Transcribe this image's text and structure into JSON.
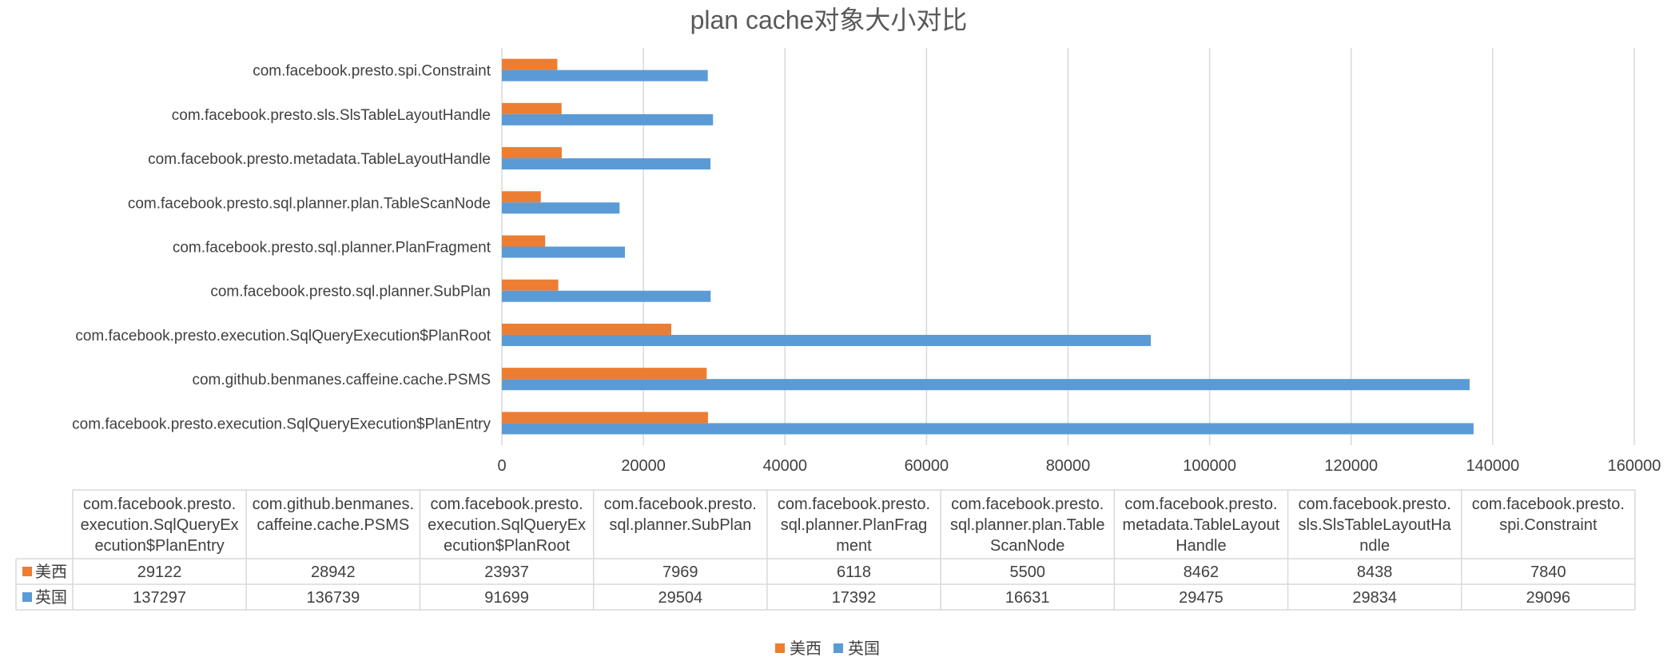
{
  "chart_data": {
    "type": "bar",
    "orientation": "horizontal",
    "title": "plan cache对象大小对比",
    "categories": [
      "com.facebook.presto.execution.SqlQueryExecution$PlanEntry",
      "com.github.benmanes.caffeine.cache.PSMS",
      "com.facebook.presto.execution.SqlQueryExecution$PlanRoot",
      "com.facebook.presto.sql.planner.SubPlan",
      "com.facebook.presto.sql.planner.PlanFragment",
      "com.facebook.presto.sql.planner.plan.TableScanNode",
      "com.facebook.presto.metadata.TableLayoutHandle",
      "com.facebook.presto.sls.SlsTableLayoutHandle",
      "com.facebook.presto.spi.Constraint"
    ],
    "table_headers": [
      [
        "com.facebook.presto.",
        "execution.SqlQueryEx",
        "ecution$PlanEntry"
      ],
      [
        "com.github.benmanes.",
        "caffeine.cache.PSMS"
      ],
      [
        "com.facebook.presto.",
        "execution.SqlQueryEx",
        "ecution$PlanRoot"
      ],
      [
        "com.facebook.presto.",
        "sql.planner.SubPlan"
      ],
      [
        "com.facebook.presto.",
        "sql.planner.PlanFrag",
        "ment"
      ],
      [
        "com.facebook.presto.",
        "sql.planner.plan.Table",
        "ScanNode"
      ],
      [
        "com.facebook.presto.",
        "metadata.TableLayout",
        "Handle"
      ],
      [
        "com.facebook.presto.",
        "sls.SlsTableLayoutHa",
        "ndle"
      ],
      [
        "com.facebook.presto.",
        "spi.Constraint"
      ]
    ],
    "series": [
      {
        "name": "美西",
        "color": "#ED7D31",
        "values": [
          29122,
          28942,
          23937,
          7969,
          6118,
          5500,
          8462,
          8438,
          7840
        ]
      },
      {
        "name": "英国",
        "color": "#5B9BD5",
        "values": [
          137297,
          136739,
          91699,
          29504,
          17392,
          16631,
          29475,
          29834,
          29096
        ]
      }
    ],
    "xlim": [
      0,
      160000
    ],
    "xticks": [
      0,
      20000,
      40000,
      60000,
      80000,
      100000,
      120000,
      140000,
      160000
    ],
    "grid": true,
    "legend_position": "bottom",
    "data_table": true
  }
}
